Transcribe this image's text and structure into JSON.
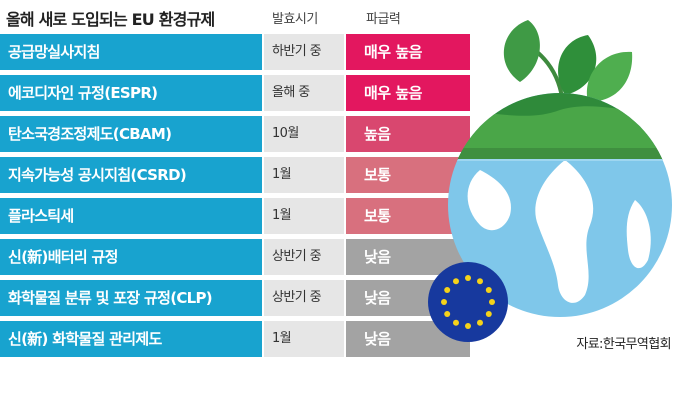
{
  "title": "올해 새로 도입되는 EU 환경규제",
  "headers": {
    "timing": "발효시기",
    "impact": "파급력"
  },
  "colors": {
    "name_bg": "#18a3cf",
    "timing_bg": "#e6e6e6",
    "impact_very_high": "#e3175f",
    "impact_high": "#d9476f",
    "impact_medium": "#d8707e",
    "impact_low": "#a3a3a3"
  },
  "rows": [
    {
      "name": "공급망실사지침",
      "timing": "하반기 중",
      "impact": "매우 높음",
      "level": "very_high"
    },
    {
      "name": "에코디자인 규정(ESPR)",
      "timing": "올해 중",
      "impact": "매우 높음",
      "level": "very_high"
    },
    {
      "name": "탄소국경조정제도(CBAM)",
      "timing": "10월",
      "impact": "높음",
      "level": "high"
    },
    {
      "name": "지속가능성 공시지침(CSRD)",
      "timing": "1월",
      "impact": "보통",
      "level": "medium"
    },
    {
      "name": "플라스틱세",
      "timing": "1월",
      "impact": "보통",
      "level": "medium"
    },
    {
      "name": "신(新)배터리 규정",
      "timing": "상반기 중",
      "impact": "낮음",
      "level": "low"
    },
    {
      "name": "화학물질 분류 및 포장 규정(CLP)",
      "timing": "상반기 중",
      "impact": "낮음",
      "level": "low"
    },
    {
      "name": "신(新) 화학물질 관리제도",
      "timing": "1월",
      "impact": "낮음",
      "level": "low"
    }
  ],
  "source": "자료:한국무역협회",
  "illustration": {
    "description_icon": "earth-with-sprout-and-eu-flag-icon"
  }
}
